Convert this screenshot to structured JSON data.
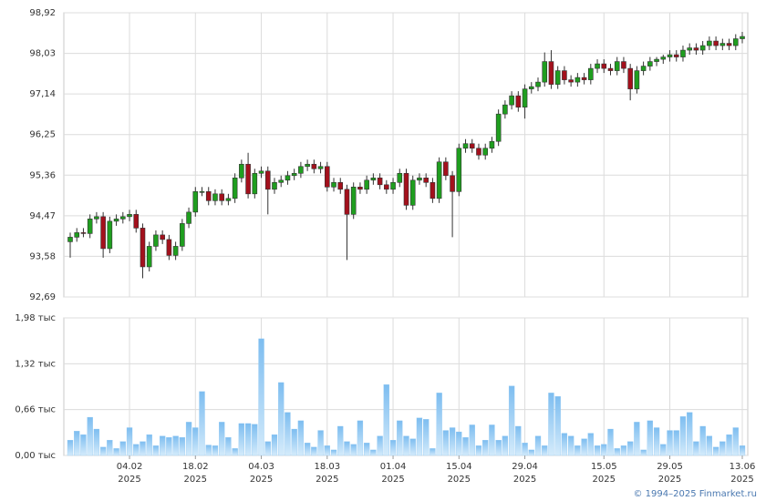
{
  "chart_data": {
    "type": "candlestick",
    "x": [
      "2025-01-22",
      "2025-01-23",
      "2025-01-24",
      "2025-01-27",
      "2025-01-28",
      "2025-01-29",
      "2025-01-30",
      "2025-01-31",
      "2025-02-03",
      "2025-02-04",
      "2025-02-05",
      "2025-02-06",
      "2025-02-07",
      "2025-02-10",
      "2025-02-11",
      "2025-02-12",
      "2025-02-13",
      "2025-02-14",
      "2025-02-17",
      "2025-02-18",
      "2025-02-19",
      "2025-02-20",
      "2025-02-21",
      "2025-02-24",
      "2025-02-25",
      "2025-02-26",
      "2025-02-27",
      "2025-02-28",
      "2025-03-03",
      "2025-03-04",
      "2025-03-05",
      "2025-03-06",
      "2025-03-07",
      "2025-03-10",
      "2025-03-11",
      "2025-03-12",
      "2025-03-13",
      "2025-03-14",
      "2025-03-17",
      "2025-03-18",
      "2025-03-19",
      "2025-03-20",
      "2025-03-21",
      "2025-03-24",
      "2025-03-25",
      "2025-03-26",
      "2025-03-27",
      "2025-03-28",
      "2025-03-31",
      "2025-04-01",
      "2025-04-02",
      "2025-04-03",
      "2025-04-04",
      "2025-04-07",
      "2025-04-08",
      "2025-04-09",
      "2025-04-10",
      "2025-04-11",
      "2025-04-14",
      "2025-04-15",
      "2025-04-16",
      "2025-04-17",
      "2025-04-18",
      "2025-04-21",
      "2025-04-22",
      "2025-04-23",
      "2025-04-24",
      "2025-04-25",
      "2025-04-28",
      "2025-04-29",
      "2025-04-30",
      "2025-05-01",
      "2025-05-02",
      "2025-05-05",
      "2025-05-06",
      "2025-05-07",
      "2025-05-08",
      "2025-05-09",
      "2025-05-12",
      "2025-05-13",
      "2025-05-14",
      "2025-05-15",
      "2025-05-16",
      "2025-05-19",
      "2025-05-20",
      "2025-05-21",
      "2025-05-22",
      "2025-05-23",
      "2025-05-26",
      "2025-05-27",
      "2025-05-28",
      "2025-05-29",
      "2025-05-30",
      "2025-06-02",
      "2025-06-03",
      "2025-06-04",
      "2025-06-05",
      "2025-06-06",
      "2025-06-09",
      "2025-06-10",
      "2025-06-11",
      "2025-06-12",
      "2025-06-13"
    ],
    "open": [
      93.9,
      94.0,
      94.1,
      94.08,
      94.4,
      94.45,
      93.75,
      94.35,
      94.4,
      94.45,
      94.5,
      94.2,
      93.35,
      93.8,
      94.05,
      93.95,
      93.6,
      93.8,
      94.3,
      94.55,
      95.0,
      95.0,
      94.8,
      94.95,
      94.8,
      94.85,
      95.3,
      95.6,
      94.95,
      95.4,
      95.45,
      95.05,
      95.2,
      95.25,
      95.35,
      95.4,
      95.55,
      95.6,
      95.5,
      95.55,
      95.1,
      95.2,
      95.05,
      94.5,
      95.1,
      95.05,
      95.25,
      95.3,
      95.15,
      95.05,
      95.2,
      95.4,
      94.7,
      95.25,
      95.3,
      95.2,
      94.85,
      95.65,
      95.35,
      95.0,
      95.95,
      96.05,
      95.95,
      95.8,
      95.95,
      96.1,
      96.7,
      96.9,
      97.1,
      96.85,
      97.25,
      97.3,
      97.4,
      97.85,
      97.35,
      97.65,
      97.45,
      97.4,
      97.5,
      97.45,
      97.7,
      97.8,
      97.7,
      97.65,
      97.85,
      97.7,
      97.25,
      97.65,
      97.75,
      97.85,
      97.9,
      97.95,
      98.0,
      97.95,
      98.1,
      98.15,
      98.1,
      98.2,
      98.3,
      98.2,
      98.25,
      98.2,
      98.35
    ],
    "high": [
      94.1,
      94.2,
      94.2,
      94.5,
      94.55,
      94.55,
      94.45,
      94.5,
      94.55,
      94.6,
      94.6,
      94.3,
      93.9,
      94.15,
      94.15,
      94.05,
      93.9,
      94.4,
      94.65,
      95.1,
      95.1,
      95.1,
      95.05,
      95.05,
      94.95,
      95.4,
      95.7,
      95.85,
      95.5,
      95.55,
      95.55,
      95.3,
      95.35,
      95.45,
      95.5,
      95.65,
      95.7,
      95.7,
      95.65,
      95.65,
      95.3,
      95.3,
      95.15,
      95.2,
      95.2,
      95.35,
      95.4,
      95.4,
      95.25,
      95.3,
      95.5,
      95.5,
      95.35,
      95.4,
      95.4,
      95.3,
      95.75,
      95.75,
      95.45,
      96.05,
      96.15,
      96.15,
      96.05,
      96.05,
      96.2,
      96.8,
      97.0,
      97.2,
      97.2,
      97.35,
      97.4,
      97.5,
      98.05,
      98.1,
      97.75,
      97.75,
      97.55,
      97.6,
      97.6,
      97.8,
      97.9,
      97.9,
      97.8,
      97.95,
      97.95,
      97.8,
      97.75,
      97.85,
      97.95,
      97.95,
      98.0,
      98.1,
      98.1,
      98.2,
      98.25,
      98.25,
      98.3,
      98.4,
      98.4,
      98.35,
      98.35,
      98.45,
      98.5
    ],
    "low": [
      93.55,
      93.9,
      94.0,
      93.98,
      94.3,
      93.55,
      93.65,
      94.25,
      94.3,
      94.35,
      94.1,
      93.1,
      93.25,
      93.7,
      93.85,
      93.5,
      93.5,
      93.7,
      94.2,
      94.45,
      94.9,
      94.7,
      94.7,
      94.7,
      94.7,
      94.75,
      95.2,
      94.85,
      94.85,
      95.3,
      94.5,
      94.95,
      95.1,
      95.15,
      95.25,
      95.3,
      95.45,
      95.4,
      95.4,
      95.0,
      95.0,
      94.95,
      93.5,
      94.4,
      94.95,
      94.95,
      95.15,
      95.05,
      94.95,
      94.95,
      95.1,
      94.6,
      94.6,
      95.15,
      95.1,
      94.75,
      94.75,
      95.25,
      94.0,
      94.9,
      95.85,
      95.85,
      95.7,
      95.7,
      95.85,
      96.0,
      96.6,
      96.8,
      96.75,
      96.6,
      97.15,
      97.2,
      97.3,
      97.25,
      97.25,
      97.35,
      97.3,
      97.3,
      97.35,
      97.35,
      97.6,
      97.6,
      97.55,
      97.55,
      97.6,
      97.0,
      97.15,
      97.55,
      97.65,
      97.75,
      97.8,
      97.85,
      97.85,
      97.85,
      98.0,
      98.0,
      98.0,
      98.1,
      98.1,
      98.1,
      98.1,
      98.1,
      98.25
    ],
    "close": [
      94.0,
      94.1,
      94.08,
      94.4,
      94.45,
      93.75,
      94.35,
      94.4,
      94.45,
      94.5,
      94.2,
      93.35,
      93.8,
      94.05,
      93.95,
      93.6,
      93.8,
      94.3,
      94.55,
      95.0,
      95.0,
      94.8,
      94.95,
      94.8,
      94.85,
      95.3,
      95.6,
      94.95,
      95.4,
      95.45,
      95.05,
      95.2,
      95.25,
      95.35,
      95.4,
      95.55,
      95.6,
      95.5,
      95.55,
      95.1,
      95.2,
      95.05,
      94.5,
      95.1,
      95.05,
      95.25,
      95.3,
      95.15,
      95.05,
      95.2,
      95.4,
      94.7,
      95.25,
      95.3,
      95.2,
      94.85,
      95.65,
      95.35,
      95.0,
      95.95,
      96.05,
      95.95,
      95.8,
      95.95,
      96.1,
      96.7,
      96.9,
      97.1,
      96.85,
      97.25,
      97.3,
      97.4,
      97.85,
      97.35,
      97.65,
      97.45,
      97.4,
      97.5,
      97.45,
      97.7,
      97.8,
      97.7,
      97.65,
      97.85,
      97.7,
      97.25,
      97.65,
      97.75,
      97.85,
      97.9,
      97.95,
      98.0,
      97.95,
      98.1,
      98.15,
      98.1,
      98.2,
      98.3,
      98.2,
      98.25,
      98.2,
      98.35,
      98.4
    ],
    "volume": [
      0.22,
      0.35,
      0.3,
      0.55,
      0.38,
      0.12,
      0.22,
      0.1,
      0.2,
      0.4,
      0.16,
      0.2,
      0.3,
      0.14,
      0.28,
      0.26,
      0.28,
      0.26,
      0.48,
      0.4,
      0.92,
      0.15,
      0.14,
      0.48,
      0.26,
      0.1,
      0.46,
      0.46,
      0.45,
      1.68,
      0.2,
      0.3,
      1.05,
      0.62,
      0.38,
      0.5,
      0.18,
      0.12,
      0.36,
      0.14,
      0.08,
      0.42,
      0.2,
      0.16,
      0.5,
      0.18,
      0.08,
      0.28,
      1.02,
      0.22,
      0.5,
      0.28,
      0.24,
      0.54,
      0.52,
      0.1,
      0.9,
      0.36,
      0.4,
      0.34,
      0.26,
      0.44,
      0.14,
      0.22,
      0.44,
      0.22,
      0.28,
      1.0,
      0.42,
      0.18,
      0.08,
      0.28,
      0.14,
      0.9,
      0.85,
      0.32,
      0.28,
      0.14,
      0.24,
      0.32,
      0.14,
      0.16,
      0.38,
      0.1,
      0.14,
      0.2,
      0.48,
      0.08,
      0.5,
      0.4,
      0.16,
      0.36,
      0.36,
      0.56,
      0.62,
      0.2,
      0.42,
      0.28,
      0.12,
      0.2,
      0.3,
      0.4,
      0.14
    ],
    "up_color": "#1f9e1f",
    "down_color": "#a3101c",
    "volume_color": "#8cc6f2",
    "ylim": [
      92.69,
      98.92
    ],
    "yticks": [
      {
        "value": 92.69,
        "label": "92,69"
      },
      {
        "value": 93.58,
        "label": "93,58"
      },
      {
        "value": 94.47,
        "label": "94,47"
      },
      {
        "value": 95.36,
        "label": "95,36"
      },
      {
        "value": 96.25,
        "label": "96,25"
      },
      {
        "value": 97.14,
        "label": "97,14"
      },
      {
        "value": 98.03,
        "label": "98,03"
      },
      {
        "value": 98.92,
        "label": "98,92"
      }
    ],
    "y2lim": [
      0,
      1.98
    ],
    "y2ticks": [
      {
        "value": 0,
        "label": "0,00 тыс"
      },
      {
        "value": 0.66,
        "label": "0,66 тыс"
      },
      {
        "value": 1.32,
        "label": "1,32 тыс"
      },
      {
        "value": 1.98,
        "label": "1,98 тыс"
      }
    ],
    "xticks": [
      {
        "value": "2025-02-04",
        "label": [
          "04.02",
          "2025"
        ]
      },
      {
        "value": "2025-02-18",
        "label": [
          "18.02",
          "2025"
        ]
      },
      {
        "value": "2025-03-04",
        "label": [
          "04.03",
          "2025"
        ]
      },
      {
        "value": "2025-03-18",
        "label": [
          "18.03",
          "2025"
        ]
      },
      {
        "value": "2025-04-01",
        "label": [
          "01.04",
          "2025"
        ]
      },
      {
        "value": "2025-04-15",
        "label": [
          "15.04",
          "2025"
        ]
      },
      {
        "value": "2025-04-29",
        "label": [
          "29.04",
          "2025"
        ]
      },
      {
        "value": "2025-05-15",
        "label": [
          "15.05",
          "2025"
        ]
      },
      {
        "value": "2025-05-29",
        "label": [
          "29.05",
          "2025"
        ]
      },
      {
        "value": "2025-06-13",
        "label": [
          "13.06",
          "2025"
        ]
      }
    ],
    "grid": true,
    "footer": "© 1994–2025 Finmarket.ru"
  }
}
